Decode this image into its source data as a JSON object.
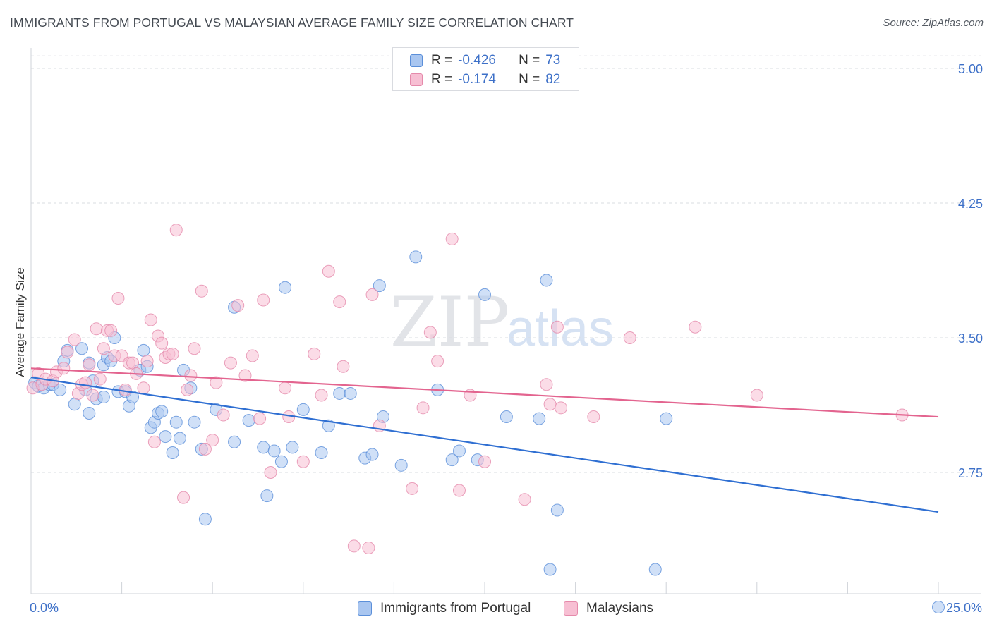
{
  "title": "IMMIGRANTS FROM PORTUGAL VS MALAYSIAN AVERAGE FAMILY SIZE CORRELATION CHART",
  "source": "Source: ZipAtlas.com",
  "watermark": {
    "zip": "ZIP",
    "atlas": "atlas"
  },
  "colors": {
    "blue_fill": "#a9c6f0",
    "blue_stroke": "#5b8fd9",
    "blue_line": "#2f6fd2",
    "pink_fill": "#f7bfd3",
    "pink_stroke": "#e58aab",
    "pink_line": "#e3648f",
    "axis_text": "#3d70c8",
    "grid": "#d9dce2"
  },
  "legend_top": [
    {
      "r_label": "R =",
      "r_value": "-0.426",
      "n_label": "N =",
      "n_value": "73",
      "color": "#a9c6f0",
      "stroke": "#5b8fd9"
    },
    {
      "r_label": "R =",
      "r_value": "-0.174",
      "n_label": "N =",
      "n_value": "82",
      "color": "#f7bfd3",
      "stroke": "#e58aab"
    }
  ],
  "legend_bottom": [
    {
      "label": "Immigrants from Portugal",
      "color": "#a9c6f0",
      "stroke": "#5b8fd9"
    },
    {
      "label": "Malaysians",
      "color": "#f7bfd3",
      "stroke": "#e58aab"
    }
  ],
  "x_min_label": "0.0%",
  "x_max_label": "25.0%",
  "chart_data": {
    "type": "scatter",
    "ylabel": "Average Family Size",
    "xlim": [
      0,
      25
    ],
    "ylim": [
      2.2,
      5.1
    ],
    "y_ticks": [
      2.75,
      3.5,
      4.25,
      5.0
    ],
    "y_tick_labels": [
      "2.75",
      "3.50",
      "4.25",
      "5.00"
    ],
    "grid": "horizontal dashed",
    "legend_placement": "top-center",
    "series": [
      {
        "name": "Immigrants from Portugal",
        "trend": {
          "x": [
            0,
            25
          ],
          "y": [
            3.28,
            2.53
          ]
        },
        "points": [
          [
            0.1,
            3.25
          ],
          [
            0.2,
            3.23
          ],
          [
            0.35,
            3.22
          ],
          [
            0.5,
            3.24
          ],
          [
            0.6,
            3.24
          ],
          [
            0.8,
            3.21
          ],
          [
            0.9,
            3.37
          ],
          [
            1.0,
            3.43
          ],
          [
            1.2,
            3.13
          ],
          [
            1.4,
            3.44
          ],
          [
            1.5,
            3.21
          ],
          [
            1.6,
            3.08
          ],
          [
            1.6,
            3.36
          ],
          [
            1.7,
            3.26
          ],
          [
            1.8,
            3.16
          ],
          [
            2.0,
            3.17
          ],
          [
            2.0,
            3.35
          ],
          [
            2.1,
            3.39
          ],
          [
            2.2,
            3.37
          ],
          [
            2.3,
            3.5
          ],
          [
            2.4,
            3.2
          ],
          [
            2.6,
            3.2
          ],
          [
            2.7,
            3.12
          ],
          [
            2.8,
            3.17
          ],
          [
            3.0,
            3.32
          ],
          [
            3.1,
            3.43
          ],
          [
            3.2,
            3.34
          ],
          [
            3.3,
            3.0
          ],
          [
            3.4,
            3.03
          ],
          [
            3.5,
            3.08
          ],
          [
            3.6,
            3.09
          ],
          [
            3.7,
            2.95
          ],
          [
            3.9,
            2.86
          ],
          [
            4.0,
            3.03
          ],
          [
            4.1,
            2.94
          ],
          [
            4.2,
            3.32
          ],
          [
            4.4,
            3.22
          ],
          [
            4.5,
            3.03
          ],
          [
            4.7,
            2.88
          ],
          [
            4.8,
            2.49
          ],
          [
            5.1,
            3.1
          ],
          [
            5.6,
            2.92
          ],
          [
            5.6,
            3.67
          ],
          [
            6.0,
            3.04
          ],
          [
            6.4,
            2.89
          ],
          [
            6.5,
            2.62
          ],
          [
            6.7,
            2.87
          ],
          [
            6.9,
            2.81
          ],
          [
            7.0,
            3.78
          ],
          [
            7.2,
            2.89
          ],
          [
            7.5,
            3.1
          ],
          [
            8.0,
            2.86
          ],
          [
            8.2,
            3.01
          ],
          [
            8.5,
            3.19
          ],
          [
            8.8,
            3.19
          ],
          [
            9.2,
            2.83
          ],
          [
            9.4,
            2.85
          ],
          [
            9.6,
            3.79
          ],
          [
            9.7,
            3.06
          ],
          [
            10.2,
            2.79
          ],
          [
            10.6,
            3.95
          ],
          [
            11.2,
            3.21
          ],
          [
            11.6,
            2.82
          ],
          [
            11.8,
            2.87
          ],
          [
            12.3,
            2.82
          ],
          [
            12.5,
            3.74
          ],
          [
            13.1,
            3.06
          ],
          [
            14.0,
            3.05
          ],
          [
            14.2,
            3.82
          ],
          [
            14.3,
            2.21
          ],
          [
            14.5,
            2.54
          ],
          [
            17.2,
            2.21
          ],
          [
            17.5,
            3.05
          ],
          [
            25.0,
            2.0
          ]
        ]
      },
      {
        "name": "Malaysians",
        "trend": {
          "x": [
            0,
            25
          ],
          "y": [
            3.33,
            3.06
          ]
        },
        "points": [
          [
            0.05,
            3.22
          ],
          [
            0.2,
            3.3
          ],
          [
            0.3,
            3.24
          ],
          [
            0.4,
            3.27
          ],
          [
            0.6,
            3.26
          ],
          [
            0.7,
            3.31
          ],
          [
            0.9,
            3.33
          ],
          [
            1.0,
            3.42
          ],
          [
            1.2,
            3.49
          ],
          [
            1.3,
            3.19
          ],
          [
            1.4,
            3.24
          ],
          [
            1.5,
            3.25
          ],
          [
            1.6,
            3.35
          ],
          [
            1.7,
            3.18
          ],
          [
            1.8,
            3.55
          ],
          [
            1.9,
            3.27
          ],
          [
            2.0,
            3.44
          ],
          [
            2.1,
            3.54
          ],
          [
            2.2,
            3.54
          ],
          [
            2.3,
            3.4
          ],
          [
            2.4,
            3.72
          ],
          [
            2.5,
            3.4
          ],
          [
            2.6,
            3.21
          ],
          [
            2.7,
            3.36
          ],
          [
            2.8,
            3.36
          ],
          [
            2.9,
            3.3
          ],
          [
            3.1,
            3.22
          ],
          [
            3.2,
            3.37
          ],
          [
            3.3,
            3.6
          ],
          [
            3.4,
            2.92
          ],
          [
            3.5,
            3.51
          ],
          [
            3.6,
            3.47
          ],
          [
            3.7,
            3.39
          ],
          [
            3.8,
            3.41
          ],
          [
            3.9,
            3.41
          ],
          [
            4.0,
            4.1
          ],
          [
            4.2,
            2.61
          ],
          [
            4.3,
            3.21
          ],
          [
            4.4,
            3.29
          ],
          [
            4.5,
            3.44
          ],
          [
            4.7,
            3.76
          ],
          [
            4.8,
            2.88
          ],
          [
            5.0,
            2.93
          ],
          [
            5.1,
            3.25
          ],
          [
            5.3,
            3.07
          ],
          [
            5.5,
            3.36
          ],
          [
            5.7,
            3.68
          ],
          [
            5.9,
            3.29
          ],
          [
            6.1,
            3.4
          ],
          [
            6.3,
            3.05
          ],
          [
            6.4,
            3.71
          ],
          [
            6.6,
            2.75
          ],
          [
            7.0,
            3.22
          ],
          [
            7.1,
            3.06
          ],
          [
            7.5,
            2.81
          ],
          [
            7.8,
            3.41
          ],
          [
            8.0,
            3.18
          ],
          [
            8.2,
            3.87
          ],
          [
            8.5,
            3.7
          ],
          [
            8.6,
            3.34
          ],
          [
            8.9,
            2.34
          ],
          [
            9.3,
            2.33
          ],
          [
            9.4,
            3.74
          ],
          [
            9.6,
            3.01
          ],
          [
            10.5,
            2.66
          ],
          [
            10.8,
            3.11
          ],
          [
            11.0,
            3.53
          ],
          [
            11.2,
            3.37
          ],
          [
            11.6,
            4.05
          ],
          [
            11.8,
            2.65
          ],
          [
            12.1,
            3.18
          ],
          [
            12.5,
            2.81
          ],
          [
            13.6,
            2.6
          ],
          [
            14.2,
            3.24
          ],
          [
            14.3,
            3.13
          ],
          [
            14.5,
            3.56
          ],
          [
            14.6,
            3.11
          ],
          [
            15.5,
            3.06
          ],
          [
            16.5,
            3.5
          ],
          [
            18.3,
            3.56
          ],
          [
            20.0,
            3.18
          ],
          [
            24.0,
            3.07
          ]
        ]
      }
    ]
  }
}
